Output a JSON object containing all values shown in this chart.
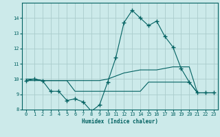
{
  "xlabel": "Humidex (Indice chaleur)",
  "x_values": [
    0,
    1,
    2,
    3,
    4,
    5,
    6,
    7,
    8,
    9,
    10,
    11,
    12,
    13,
    14,
    15,
    16,
    17,
    18,
    19,
    20,
    21,
    22,
    23
  ],
  "line1_y": [
    9.9,
    10.0,
    9.9,
    9.2,
    9.2,
    8.6,
    8.7,
    8.5,
    7.9,
    8.3,
    9.8,
    11.4,
    13.7,
    14.5,
    14.0,
    13.5,
    13.8,
    12.8,
    12.1,
    10.7,
    9.8,
    9.1,
    9.1,
    9.1
  ],
  "line2_y": [
    10.0,
    10.0,
    9.9,
    9.9,
    9.9,
    9.9,
    9.9,
    9.9,
    9.9,
    9.9,
    10.0,
    10.2,
    10.4,
    10.5,
    10.6,
    10.6,
    10.6,
    10.7,
    10.8,
    10.8,
    10.8,
    9.1,
    9.1,
    9.1
  ],
  "line3_y": [
    9.9,
    9.9,
    9.9,
    9.9,
    9.9,
    9.9,
    9.2,
    9.2,
    9.2,
    9.2,
    9.2,
    9.2,
    9.2,
    9.2,
    9.2,
    9.8,
    9.8,
    9.8,
    9.8,
    9.8,
    9.8,
    9.1,
    9.1,
    9.1
  ],
  "bg_color": "#cceaea",
  "grid_color": "#aacccc",
  "line_color": "#006060",
  "marker": "+",
  "marker_size": 4,
  "ylim": [
    8.0,
    15.0
  ],
  "xlim": [
    -0.5,
    23.5
  ],
  "yticks": [
    8,
    9,
    10,
    11,
    12,
    13,
    14
  ],
  "xticks": [
    0,
    1,
    2,
    3,
    4,
    5,
    6,
    7,
    8,
    9,
    10,
    11,
    12,
    13,
    14,
    15,
    16,
    17,
    18,
    19,
    20,
    21,
    22,
    23
  ]
}
